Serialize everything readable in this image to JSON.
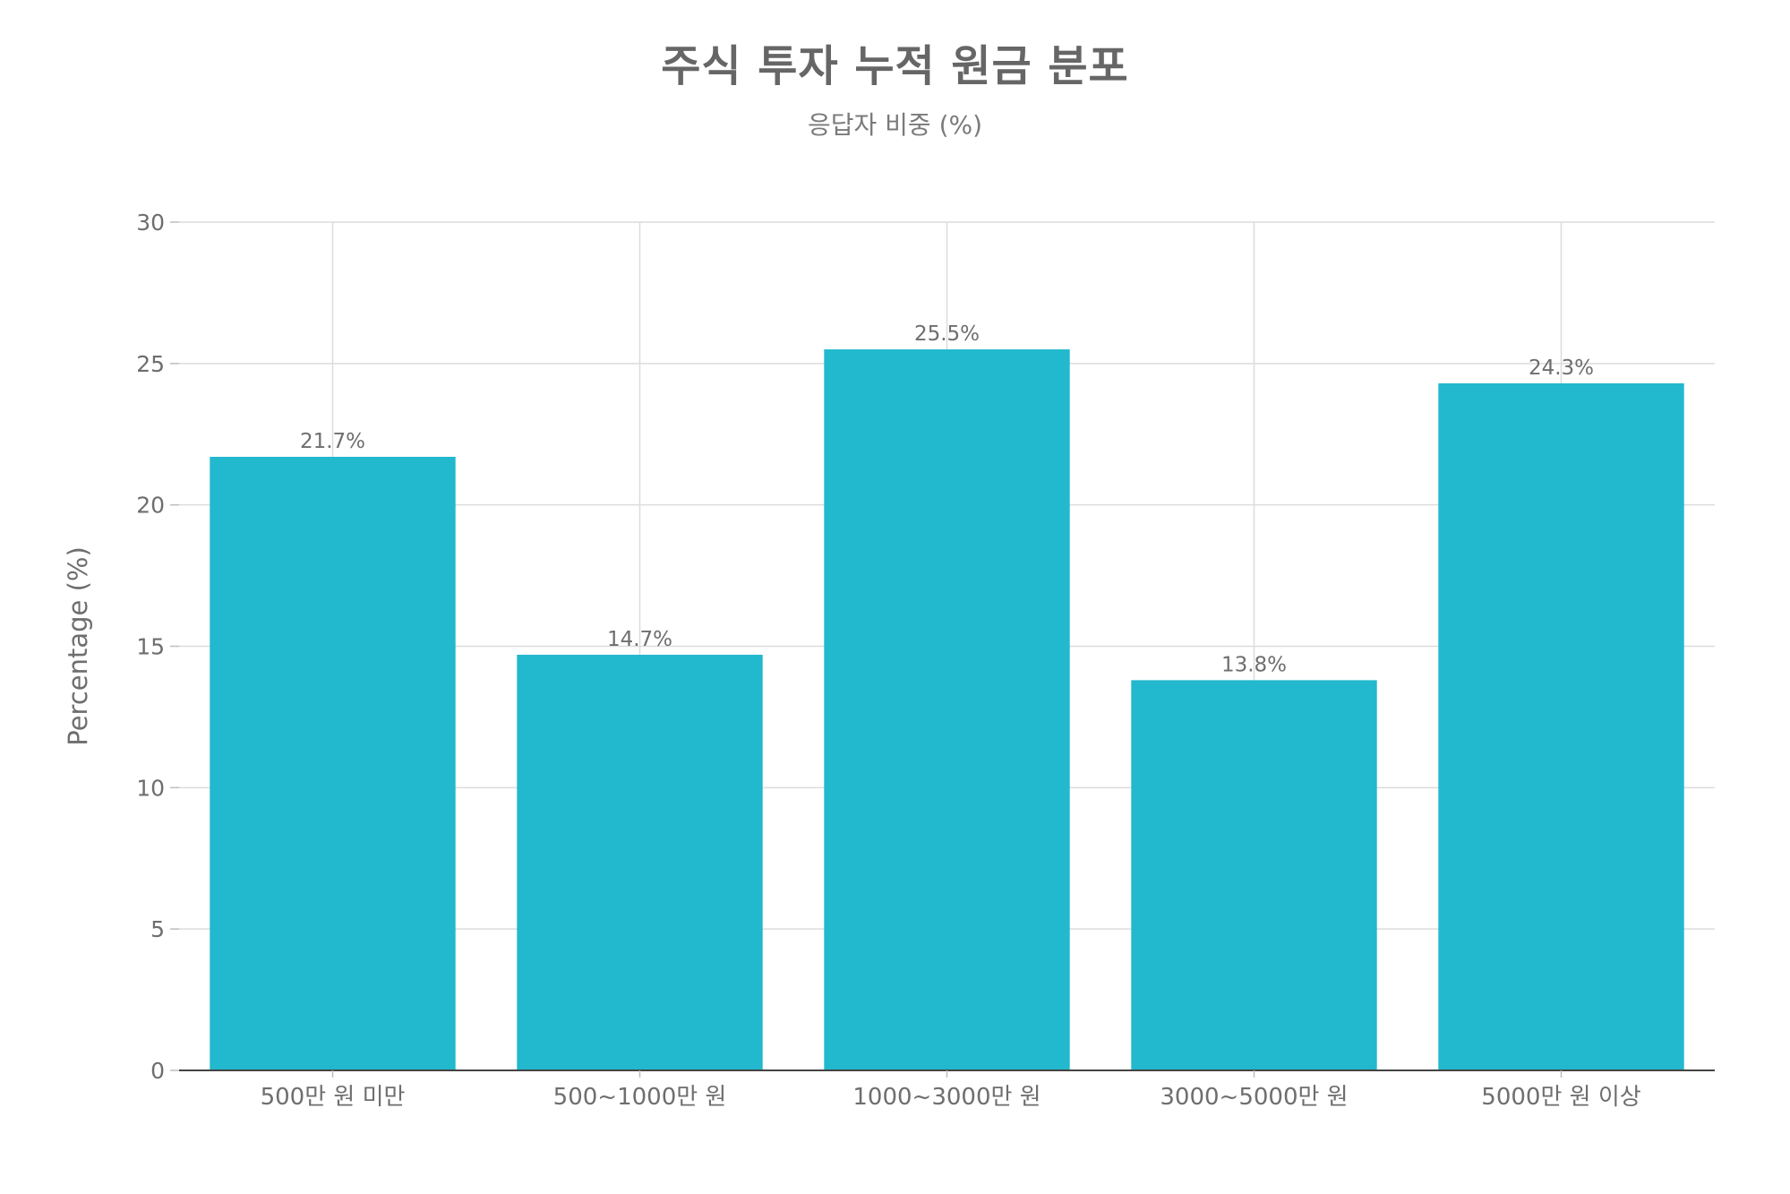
{
  "chart_data": {
    "type": "bar",
    "title": "주식 투자 누적 원금 분포",
    "subtitle": "응답자 비중 (%)",
    "xlabel": "",
    "ylabel": "Percentage (%)",
    "categories": [
      "500만 원 미만",
      "500~1000만 원",
      "1000~3000만 원",
      "3000~5000만 원",
      "5000만 원 이상"
    ],
    "values": [
      21.7,
      14.7,
      25.5,
      13.8,
      24.3
    ],
    "data_labels": [
      "21.7%",
      "14.7%",
      "25.5%",
      "13.8%",
      "24.3%"
    ],
    "ylim": [
      0,
      30
    ],
    "yticks": [
      0,
      5,
      10,
      15,
      20,
      25,
      30
    ],
    "grid": true,
    "bar_color": "#22b8ce"
  }
}
